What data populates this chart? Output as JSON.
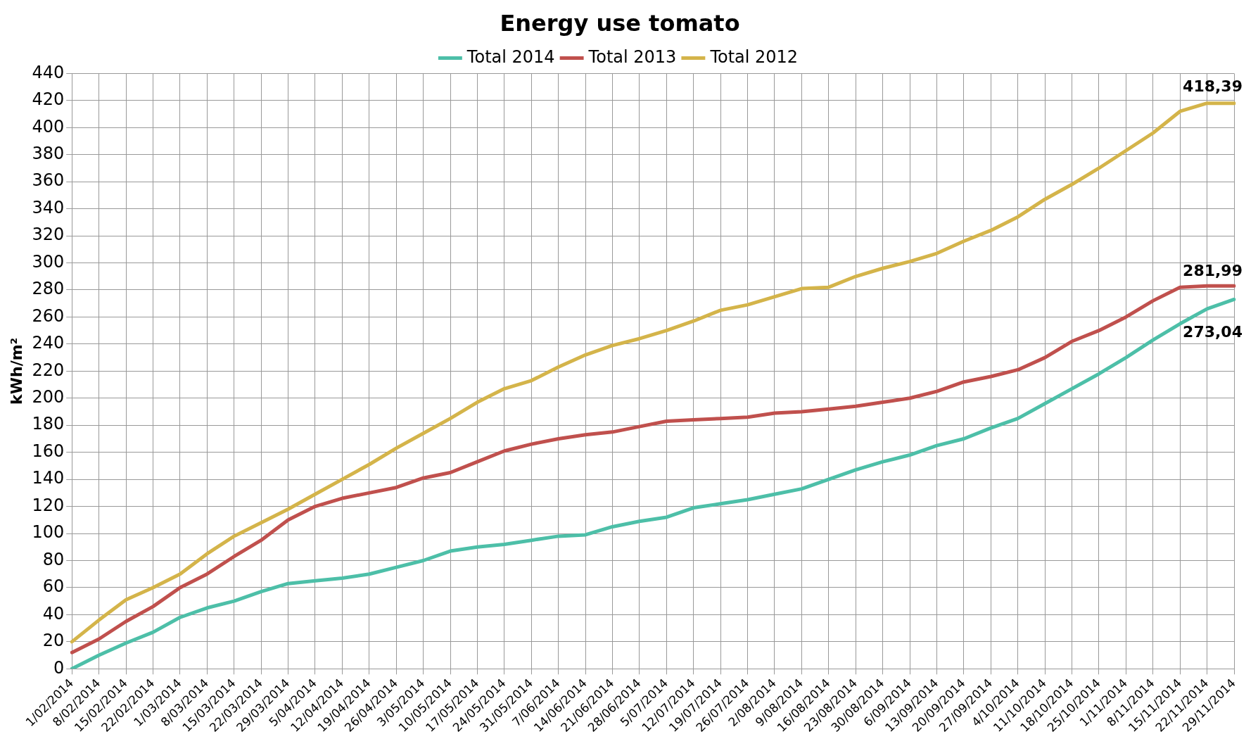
{
  "chart_data": {
    "type": "line",
    "title": "Energy use tomato",
    "ylabel": "kWh/m²",
    "categories": [
      "1/02/2014",
      "8/02/2014",
      "15/02/2014",
      "22/02/2014",
      "1/03/2014",
      "8/03/2014",
      "15/03/2014",
      "22/03/2014",
      "29/03/2014",
      "5/04/2014",
      "12/04/2014",
      "19/04/2014",
      "26/04/2014",
      "3/05/2014",
      "10/05/2014",
      "17/05/2014",
      "24/05/2014",
      "31/05/2014",
      "7/06/2014",
      "14/06/2014",
      "21/06/2014",
      "28/06/2014",
      "5/07/2014",
      "12/07/2014",
      "19/07/2014",
      "26/07/2014",
      "2/08/2014",
      "9/08/2014",
      "16/08/2014",
      "23/08/2014",
      "30/08/2014",
      "6/09/2014",
      "13/09/2014",
      "20/09/2014",
      "27/09/2014",
      "4/10/2014",
      "11/10/2014",
      "18/10/2014",
      "25/10/2014",
      "1/11/2014",
      "8/11/2014",
      "15/11/2014",
      "22/11/2014",
      "29/11/2014"
    ],
    "series": [
      {
        "name": "Total 2014",
        "color": "#4dbfa8",
        "values": [
          0,
          10,
          19,
          27,
          38,
          45,
          50,
          57,
          63,
          65,
          67,
          70,
          75,
          80,
          87,
          90,
          92,
          95,
          98,
          99,
          105,
          109,
          112,
          119,
          122,
          125,
          129,
          133,
          140,
          147,
          153,
          158,
          165,
          170,
          178,
          185,
          196,
          207,
          218,
          230,
          243,
          255,
          266,
          273
        ]
      },
      {
        "name": "Total 2013",
        "color": "#c0504d",
        "values": [
          12,
          22,
          35,
          46,
          60,
          70,
          83,
          95,
          110,
          120,
          126,
          130,
          134,
          141,
          145,
          153,
          161,
          166,
          170,
          173,
          175,
          179,
          183,
          184,
          185,
          186,
          189,
          190,
          192,
          194,
          197,
          200,
          205,
          212,
          216,
          221,
          230,
          242,
          250,
          260,
          272,
          282,
          283,
          283
        ]
      },
      {
        "name": "Total 2012",
        "color": "#d4b44a",
        "values": [
          20,
          36,
          51,
          60,
          70,
          85,
          98,
          108,
          118,
          129,
          140,
          151,
          163,
          174,
          185,
          197,
          207,
          213,
          223,
          232,
          239,
          244,
          250,
          257,
          265,
          269,
          275,
          281,
          282,
          290,
          296,
          301,
          307,
          316,
          324,
          334,
          347,
          358,
          370,
          383,
          396,
          412,
          418,
          418
        ]
      }
    ],
    "ylim": [
      0,
      440
    ],
    "yticks": [
      0,
      20,
      40,
      60,
      80,
      100,
      120,
      140,
      160,
      180,
      200,
      220,
      240,
      260,
      280,
      300,
      320,
      340,
      360,
      380,
      400,
      420,
      440
    ],
    "grid": true,
    "legend": "top",
    "marker": "none",
    "line_style": "solid",
    "annotations": [
      {
        "text": "418,39",
        "x": "29/11/2014",
        "y": 418.39
      },
      {
        "text": "281,99",
        "x": "29/11/2014",
        "y": 281.99
      },
      {
        "text": "273,04",
        "x": "29/11/2014",
        "y": 273.04
      }
    ]
  }
}
